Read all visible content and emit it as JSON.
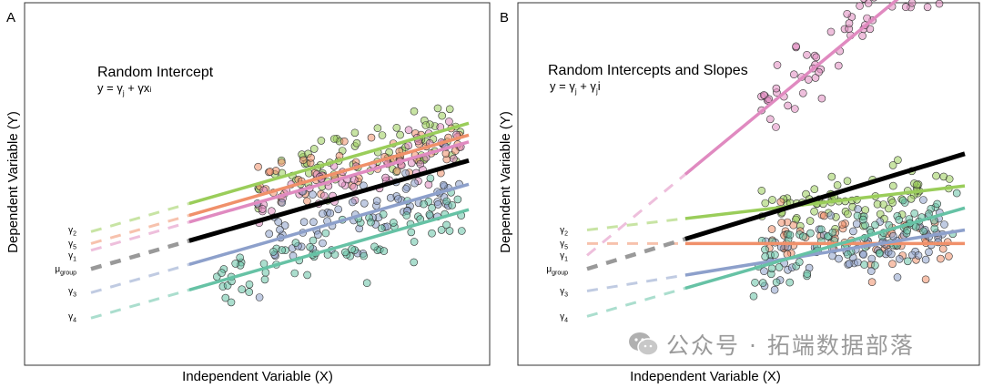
{
  "xlabel": "Independent Variable (X)",
  "ylabel": "Dependent Variable (Y)",
  "watermark": "公众号 · 拓端数据部落",
  "chart_data": [
    {
      "panel": "A",
      "type": "scatter",
      "title": "Random Intercept",
      "equation_text": "y = γ + γx",
      "equation_parts": {
        "lhs": "y = γ",
        "sub1": "j",
        "mid": " + γx",
        "sub2": "",
        "sub3": "i"
      },
      "xlabel": "Independent Variable (X)",
      "ylabel": "Dependent Variable (Y)",
      "xlim": [
        0,
        10
      ],
      "ylim": [
        0,
        10
      ],
      "fit_range": [
        2.6,
        10
      ],
      "group_labels": [
        {
          "sym": "γ",
          "sub": "2",
          "y": 3.75
        },
        {
          "sym": "γ",
          "sub": "5",
          "y": 3.35
        },
        {
          "sym": "γ",
          "sub": "1",
          "y": 3.0
        },
        {
          "sym": "μ",
          "sub": "group",
          "y": 2.6
        },
        {
          "sym": "γ",
          "sub": "3",
          "y": 1.95
        },
        {
          "sym": "γ",
          "sub": "4",
          "y": 1.2
        }
      ],
      "series": [
        {
          "key": "g2",
          "color": "#9ACD5A",
          "intercept": 3.7,
          "slope": 0.32,
          "n": 75,
          "xmin": 4.4,
          "xmax": 9.8,
          "sd": 0.45
        },
        {
          "key": "g5",
          "color": "#F0906A",
          "intercept": 3.35,
          "slope": 0.32,
          "n": 60,
          "xmin": 4.4,
          "xmax": 9.8,
          "sd": 0.4
        },
        {
          "key": "g1",
          "color": "#E08AC0",
          "intercept": 3.15,
          "slope": 0.32,
          "n": 60,
          "xmin": 4.4,
          "xmax": 9.8,
          "sd": 0.4
        },
        {
          "key": "g3",
          "color": "#8DA0CB",
          "intercept": 1.9,
          "slope": 0.32,
          "n": 75,
          "xmin": 4.4,
          "xmax": 9.8,
          "sd": 0.45
        },
        {
          "key": "g4",
          "color": "#66C2A5",
          "intercept": 1.15,
          "slope": 0.32,
          "n": 80,
          "xmin": 3.2,
          "xmax": 10.0,
          "sd": 0.45
        }
      ],
      "mean_line": {
        "key": "mu",
        "color": "#000000",
        "intercept": 2.6,
        "slope": 0.32
      }
    },
    {
      "panel": "B",
      "type": "scatter",
      "title": "Random Intercepts and Slopes",
      "equation_text": "y = γ + γx",
      "equation_parts": {
        "lhs": "y = γ",
        "sub1": "j",
        "mid": " + γ",
        "sub2": "j",
        "sub3": "i"
      },
      "xlabel": "Independent Variable (X)",
      "ylabel": "Dependent Variable (Y)",
      "xlim": [
        0,
        10
      ],
      "ylim": [
        0,
        10
      ],
      "fit_range": [
        2.6,
        10
      ],
      "group_labels": [
        {
          "sym": "γ",
          "sub": "2",
          "y": 3.75
        },
        {
          "sym": "γ",
          "sub": "5",
          "y": 3.35
        },
        {
          "sym": "γ",
          "sub": "1",
          "y": 3.0
        },
        {
          "sym": "μ",
          "sub": "group",
          "y": 2.6
        },
        {
          "sym": "γ",
          "sub": "3",
          "y": 1.95
        },
        {
          "sym": "γ",
          "sub": "4",
          "y": 1.2
        }
      ],
      "series": [
        {
          "key": "g1",
          "color": "#E08AC0",
          "intercept": 3.0,
          "slope": 0.92,
          "n": 75,
          "xmin": 4.6,
          "xmax": 9.6,
          "sd": 0.45
        },
        {
          "key": "g2",
          "color": "#9ACD5A",
          "intercept": 3.75,
          "slope": 0.13,
          "n": 75,
          "xmin": 4.6,
          "xmax": 9.6,
          "sd": 0.45
        },
        {
          "key": "g5",
          "color": "#F0906A",
          "intercept": 3.35,
          "slope": 0.0,
          "n": 60,
          "xmin": 4.6,
          "xmax": 9.6,
          "sd": 0.4
        },
        {
          "key": "g3",
          "color": "#8DA0CB",
          "intercept": 1.95,
          "slope": 0.18,
          "n": 75,
          "xmin": 4.6,
          "xmax": 9.6,
          "sd": 0.45
        },
        {
          "key": "g4",
          "color": "#66C2A5",
          "intercept": 1.2,
          "slope": 0.32,
          "n": 80,
          "xmin": 4.4,
          "xmax": 9.8,
          "sd": 0.45
        }
      ],
      "mean_line": {
        "key": "mu",
        "color": "#000000",
        "intercept": 2.6,
        "slope": 0.34
      }
    }
  ]
}
